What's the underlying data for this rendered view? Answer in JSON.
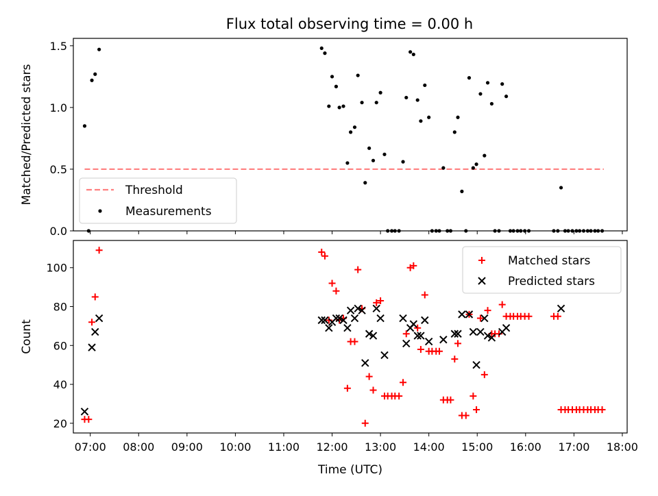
{
  "title": "Flux total observing time = 0.00 h",
  "xlabel": "Time (UTC)",
  "x_ticks": [
    "07:00",
    "08:00",
    "09:00",
    "10:00",
    "11:00",
    "12:00",
    "13:00",
    "14:00",
    "15:00",
    "16:00",
    "17:00",
    "18:00"
  ],
  "colors": {
    "measurement": "#000000",
    "threshold": "#ff7f7f",
    "matched": "#ff0000",
    "predicted": "#000000"
  },
  "chart_data": [
    {
      "type": "scatter",
      "ylabel": "Matched/Predicted stars",
      "xlim": [
        "06:39",
        "18:06"
      ],
      "ylim": [
        0,
        1.56
      ],
      "y_ticks": [
        "0.0",
        "0.5",
        "1.0",
        "1.5"
      ],
      "legend": {
        "placement": "lower-left",
        "entries": [
          "Threshold",
          "Measurements"
        ]
      },
      "threshold": {
        "name": "Threshold",
        "value": 0.5,
        "x_range": [
          "06:53",
          "17:37"
        ]
      },
      "series": [
        {
          "name": "Measurements",
          "points": [
            [
              "06:53",
              0.85
            ],
            [
              "06:58",
              0.0
            ],
            [
              "07:02",
              1.22
            ],
            [
              "07:06",
              1.27
            ],
            [
              "07:11",
              1.47
            ],
            [
              "11:47",
              1.48
            ],
            [
              "11:51",
              1.44
            ],
            [
              "11:56",
              1.01
            ],
            [
              "12:00",
              1.25
            ],
            [
              "12:05",
              1.17
            ],
            [
              "12:09",
              1.0
            ],
            [
              "12:14",
              1.01
            ],
            [
              "12:19",
              0.55
            ],
            [
              "12:23",
              0.8
            ],
            [
              "12:28",
              0.84
            ],
            [
              "12:32",
              1.26
            ],
            [
              "12:37",
              1.04
            ],
            [
              "12:41",
              0.39
            ],
            [
              "12:46",
              0.67
            ],
            [
              "12:51",
              0.57
            ],
            [
              "12:55",
              1.04
            ],
            [
              "13:00",
              1.12
            ],
            [
              "13:05",
              0.62
            ],
            [
              "13:09",
              0.0
            ],
            [
              "13:14",
              0.0
            ],
            [
              "13:18",
              0.0
            ],
            [
              "13:23",
              0.0
            ],
            [
              "13:28",
              0.56
            ],
            [
              "13:32",
              1.08
            ],
            [
              "13:37",
              1.45
            ],
            [
              "13:41",
              1.43
            ],
            [
              "13:46",
              1.06
            ],
            [
              "13:50",
              0.89
            ],
            [
              "13:55",
              1.18
            ],
            [
              "14:00",
              0.92
            ],
            [
              "14:04",
              0.0
            ],
            [
              "14:09",
              0.0
            ],
            [
              "14:13",
              0.0
            ],
            [
              "14:18",
              0.51
            ],
            [
              "14:23",
              0.0
            ],
            [
              "14:27",
              0.0
            ],
            [
              "14:32",
              0.8
            ],
            [
              "14:36",
              0.92
            ],
            [
              "14:41",
              0.32
            ],
            [
              "14:46",
              0.0
            ],
            [
              "14:50",
              1.24
            ],
            [
              "14:55",
              0.51
            ],
            [
              "14:59",
              0.54
            ],
            [
              "15:04",
              1.11
            ],
            [
              "15:09",
              0.61
            ],
            [
              "15:13",
              1.2
            ],
            [
              "15:18",
              1.03
            ],
            [
              "15:22",
              0.0
            ],
            [
              "15:27",
              0.0
            ],
            [
              "15:31",
              1.19
            ],
            [
              "15:36",
              1.09
            ],
            [
              "15:41",
              0.0
            ],
            [
              "15:45",
              0.0
            ],
            [
              "15:50",
              0.0
            ],
            [
              "15:54",
              0.0
            ],
            [
              "15:59",
              0.0
            ],
            [
              "16:04",
              0.0
            ],
            [
              "16:35",
              0.0
            ],
            [
              "16:40",
              0.0
            ],
            [
              "16:44",
              0.35
            ],
            [
              "16:49",
              0.0
            ],
            [
              "16:53",
              0.0
            ],
            [
              "16:58",
              0.0
            ],
            [
              "17:03",
              0.0
            ],
            [
              "17:07",
              0.0
            ],
            [
              "17:12",
              0.0
            ],
            [
              "17:17",
              0.0
            ],
            [
              "17:21",
              0.0
            ],
            [
              "17:26",
              0.0
            ],
            [
              "17:30",
              0.0
            ],
            [
              "17:35",
              0.0
            ]
          ]
        }
      ]
    },
    {
      "type": "scatter",
      "ylabel": "Count",
      "xlim": [
        "06:39",
        "18:06"
      ],
      "ylim": [
        15,
        114
      ],
      "y_ticks": [
        "20",
        "40",
        "60",
        "80",
        "100"
      ],
      "legend": {
        "placement": "top-right",
        "entries": [
          "Matched stars",
          "Predicted stars"
        ]
      },
      "series": [
        {
          "name": "Matched stars",
          "points": [
            [
              "06:53",
              22
            ],
            [
              "06:58",
              22
            ],
            [
              "07:02",
              72
            ],
            [
              "07:06",
              85
            ],
            [
              "07:11",
              109
            ],
            [
              "11:47",
              108
            ],
            [
              "11:51",
              106
            ],
            [
              "11:56",
              73
            ],
            [
              "12:00",
              92
            ],
            [
              "12:05",
              88
            ],
            [
              "12:09",
              73
            ],
            [
              "12:14",
              74
            ],
            [
              "12:19",
              38
            ],
            [
              "12:23",
              62
            ],
            [
              "12:28",
              62
            ],
            [
              "12:32",
              99
            ],
            [
              "12:37",
              79
            ],
            [
              "12:41",
              20
            ],
            [
              "12:46",
              44
            ],
            [
              "12:51",
              37
            ],
            [
              "12:55",
              82
            ],
            [
              "13:00",
              83
            ],
            [
              "13:05",
              34
            ],
            [
              "13:09",
              34
            ],
            [
              "13:14",
              34
            ],
            [
              "13:18",
              34
            ],
            [
              "13:23",
              34
            ],
            [
              "13:28",
              41
            ],
            [
              "13:32",
              66
            ],
            [
              "13:37",
              100
            ],
            [
              "13:41",
              101
            ],
            [
              "13:46",
              69
            ],
            [
              "13:50",
              58
            ],
            [
              "13:55",
              86
            ],
            [
              "14:00",
              57
            ],
            [
              "14:04",
              57
            ],
            [
              "14:09",
              57
            ],
            [
              "14:13",
              57
            ],
            [
              "14:18",
              32
            ],
            [
              "14:23",
              32
            ],
            [
              "14:27",
              32
            ],
            [
              "14:32",
              53
            ],
            [
              "14:36",
              61
            ],
            [
              "14:41",
              24
            ],
            [
              "14:46",
              24
            ],
            [
              "14:50",
              76
            ],
            [
              "14:55",
              34
            ],
            [
              "14:59",
              27
            ],
            [
              "15:04",
              74
            ],
            [
              "15:09",
              45
            ],
            [
              "15:13",
              78
            ],
            [
              "15:18",
              66
            ],
            [
              "15:22",
              66
            ],
            [
              "15:27",
              66
            ],
            [
              "15:31",
              81
            ],
            [
              "15:36",
              75
            ],
            [
              "15:41",
              75
            ],
            [
              "15:45",
              75
            ],
            [
              "15:50",
              75
            ],
            [
              "15:54",
              75
            ],
            [
              "15:59",
              75
            ],
            [
              "16:04",
              75
            ],
            [
              "16:35",
              75
            ],
            [
              "16:40",
              75
            ],
            [
              "16:44",
              27
            ],
            [
              "16:49",
              27
            ],
            [
              "16:53",
              27
            ],
            [
              "16:58",
              27
            ],
            [
              "17:03",
              27
            ],
            [
              "17:07",
              27
            ],
            [
              "17:12",
              27
            ],
            [
              "17:17",
              27
            ],
            [
              "17:21",
              27
            ],
            [
              "17:26",
              27
            ],
            [
              "17:30",
              27
            ],
            [
              "17:35",
              27
            ]
          ]
        },
        {
          "name": "Predicted stars",
          "points": [
            [
              "06:53",
              26
            ],
            [
              "07:02",
              59
            ],
            [
              "07:06",
              67
            ],
            [
              "07:11",
              74
            ],
            [
              "11:47",
              73
            ],
            [
              "11:51",
              73
            ],
            [
              "11:56",
              69
            ],
            [
              "12:00",
              72
            ],
            [
              "12:05",
              74
            ],
            [
              "12:09",
              74
            ],
            [
              "12:14",
              73
            ],
            [
              "12:19",
              69
            ],
            [
              "12:23",
              78
            ],
            [
              "12:28",
              74
            ],
            [
              "12:32",
              79
            ],
            [
              "12:37",
              78
            ],
            [
              "12:41",
              51
            ],
            [
              "12:46",
              66
            ],
            [
              "12:51",
              65
            ],
            [
              "12:55",
              79
            ],
            [
              "13:00",
              74
            ],
            [
              "13:05",
              55
            ],
            [
              "13:28",
              74
            ],
            [
              "13:32",
              61
            ],
            [
              "13:37",
              69
            ],
            [
              "13:41",
              71
            ],
            [
              "13:46",
              65
            ],
            [
              "13:50",
              65
            ],
            [
              "13:55",
              73
            ],
            [
              "14:00",
              62
            ],
            [
              "14:18",
              63
            ],
            [
              "14:32",
              66
            ],
            [
              "14:36",
              66
            ],
            [
              "14:41",
              76
            ],
            [
              "14:50",
              76
            ],
            [
              "14:55",
              67
            ],
            [
              "14:59",
              50
            ],
            [
              "15:04",
              67
            ],
            [
              "15:09",
              74
            ],
            [
              "15:13",
              65
            ],
            [
              "15:18",
              64
            ],
            [
              "15:31",
              67
            ],
            [
              "15:36",
              69
            ],
            [
              "16:44",
              79
            ]
          ]
        }
      ]
    }
  ]
}
